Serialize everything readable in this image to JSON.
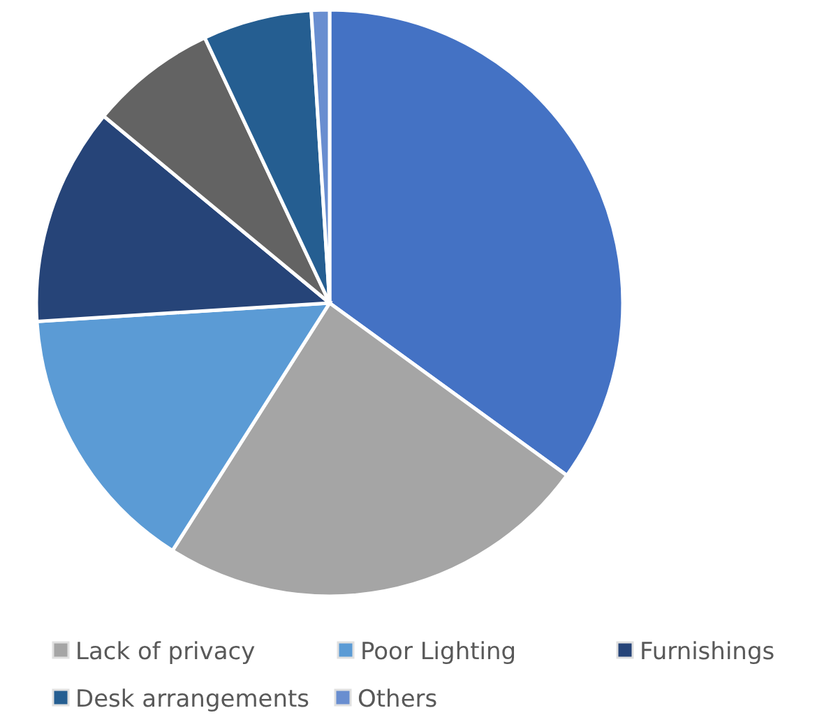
{
  "chart_data": {
    "type": "pie",
    "categories": [
      null,
      "Lack of privacy",
      "Poor Lighting",
      "Furnishings",
      null,
      "Desk arrangements",
      "Others"
    ],
    "values": [
      35,
      24,
      15,
      12,
      7,
      6,
      1
    ],
    "colors": [
      "#4472c4",
      "#a5a5a5",
      "#5b9bd5",
      "#264478",
      "#636363",
      "#255e91",
      "#698ed0"
    ],
    "legend": "bottom"
  }
}
